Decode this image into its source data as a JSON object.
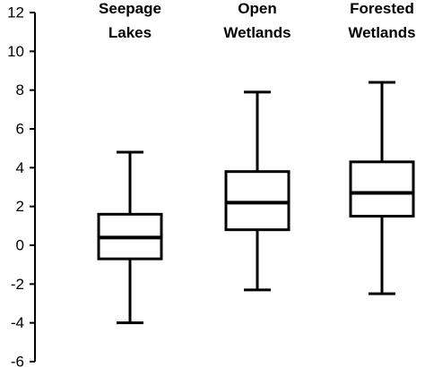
{
  "chart_data": {
    "type": "box",
    "title": "",
    "xlabel": "",
    "ylabel": "",
    "ylim": [
      -6,
      12
    ],
    "y_ticks": [
      "12",
      "10",
      "8",
      "6",
      "4",
      "2",
      "0",
      "-2",
      "-4",
      "-6"
    ],
    "y_tick_values": [
      12,
      10,
      8,
      6,
      4,
      2,
      0,
      -2,
      -4,
      -6
    ],
    "grid": false,
    "categories": [
      {
        "line1": "Seepage",
        "line2": "Lakes",
        "whisker_low": -4.0,
        "q1": -0.7,
        "median": 0.4,
        "q3": 1.6,
        "whisker_high": 4.8
      },
      {
        "line1": "Open",
        "line2": "Wetlands",
        "whisker_low": -2.3,
        "q1": 0.8,
        "median": 2.2,
        "q3": 3.8,
        "whisker_high": 7.9
      },
      {
        "line1": "Forested",
        "line2": "Wetlands",
        "whisker_low": -2.5,
        "q1": 1.5,
        "median": 2.7,
        "q3": 4.3,
        "whisker_high": 8.4
      }
    ]
  }
}
